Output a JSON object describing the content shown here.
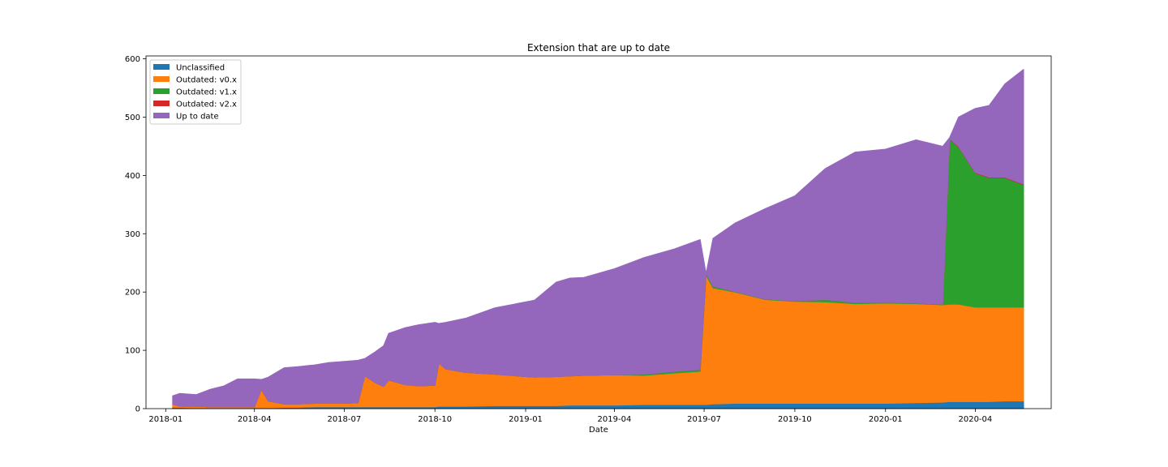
{
  "chart_data": {
    "type": "area",
    "stacked": true,
    "title": "Extension that are up to date",
    "xlabel": "Date",
    "ylabel": "",
    "x_axis_type": "date",
    "xlim": [
      "2017-12-12",
      "2020-06-17"
    ],
    "ylim": [
      0,
      605
    ],
    "x_ticks": [
      "2018-01",
      "2018-04",
      "2018-07",
      "2018-10",
      "2019-01",
      "2019-04",
      "2019-07",
      "2019-10",
      "2020-01",
      "2020-04"
    ],
    "y_ticks": [
      0,
      100,
      200,
      300,
      400,
      500,
      600
    ],
    "grid": false,
    "legend_position": "upper-left",
    "x": [
      "2018-01-08",
      "2018-01-15",
      "2018-02-01",
      "2018-02-15",
      "2018-03-01",
      "2018-03-15",
      "2018-04-01",
      "2018-04-08",
      "2018-04-15",
      "2018-05-01",
      "2018-05-15",
      "2018-06-01",
      "2018-06-15",
      "2018-07-01",
      "2018-07-15",
      "2018-07-22",
      "2018-08-01",
      "2018-08-10",
      "2018-08-15",
      "2018-09-01",
      "2018-09-15",
      "2018-10-01",
      "2018-10-05",
      "2018-10-12",
      "2018-11-01",
      "2018-12-01",
      "2019-01-01",
      "2019-01-10",
      "2019-02-01",
      "2019-02-15",
      "2019-03-01",
      "2019-04-01",
      "2019-05-01",
      "2019-06-01",
      "2019-06-27",
      "2019-07-03",
      "2019-07-10",
      "2019-08-01",
      "2019-09-01",
      "2019-10-01",
      "2019-11-01",
      "2019-12-01",
      "2020-01-01",
      "2020-02-01",
      "2020-02-28",
      "2020-03-06",
      "2020-03-15",
      "2020-04-01",
      "2020-04-15",
      "2020-05-01",
      "2020-05-20"
    ],
    "series": [
      {
        "name": "Unclassified",
        "color": "#1f77b4",
        "values": [
          2,
          2,
          1,
          1,
          1,
          1,
          1,
          1,
          1,
          2,
          2,
          3,
          3,
          3,
          3,
          3,
          3,
          3,
          3,
          3,
          3,
          3,
          4,
          4,
          4,
          5,
          5,
          5,
          5,
          6,
          6,
          6,
          7,
          7,
          7,
          7,
          8,
          9,
          9,
          9,
          9,
          9,
          9,
          10,
          11,
          12,
          12,
          12,
          12,
          13,
          13
        ]
      },
      {
        "name": "Outdated: v0.x",
        "color": "#ff7f0e",
        "values": [
          6,
          2,
          3,
          2,
          2,
          2,
          2,
          32,
          12,
          6,
          6,
          6,
          6,
          6,
          7,
          53,
          42,
          35,
          46,
          38,
          36,
          37,
          74,
          64,
          58,
          54,
          50,
          49,
          50,
          50,
          51,
          52,
          50,
          54,
          57,
          222,
          199,
          191,
          178,
          175,
          174,
          171,
          172,
          170,
          167,
          167,
          167,
          162,
          162,
          161,
          161
        ]
      },
      {
        "name": "Outdated: v1.x",
        "color": "#2ca02c",
        "values": [
          0,
          0,
          0,
          0,
          0,
          0,
          0,
          0,
          0,
          0,
          0,
          0,
          0,
          0,
          0,
          0,
          0,
          0,
          0,
          0,
          0,
          0,
          0,
          0,
          0,
          0,
          0,
          0,
          0,
          0,
          0,
          0,
          2,
          3,
          3,
          3,
          3,
          1,
          1,
          1,
          4,
          2,
          1,
          1,
          1,
          283,
          270,
          230,
          222,
          222,
          210
        ]
      },
      {
        "name": "Outdated: v2.x",
        "color": "#d62728",
        "values": [
          0,
          0,
          0,
          0,
          0,
          0,
          0,
          0,
          0,
          0,
          0,
          0,
          0,
          0,
          0,
          0,
          0,
          0,
          0,
          0,
          0,
          0,
          0,
          0,
          0,
          0,
          0,
          0,
          0,
          0,
          0,
          0,
          0,
          0,
          0,
          0,
          0,
          0,
          0,
          0,
          0,
          0,
          0,
          0,
          0,
          1,
          1,
          1,
          1,
          1,
          1
        ]
      },
      {
        "name": "Up to date",
        "color": "#9467bd",
        "values": [
          14,
          22,
          20,
          30,
          36,
          48,
          48,
          17,
          41,
          62,
          64,
          66,
          70,
          72,
          73,
          30,
          52,
          70,
          80,
          98,
          105,
          108,
          68,
          80,
          93,
          114,
          128,
          132,
          162,
          168,
          168,
          182,
          200,
          210,
          223,
          0,
          82,
          117,
          155,
          180,
          225,
          258,
          263,
          280,
          271,
          2,
          50,
          110,
          123,
          160,
          197
        ]
      }
    ]
  }
}
